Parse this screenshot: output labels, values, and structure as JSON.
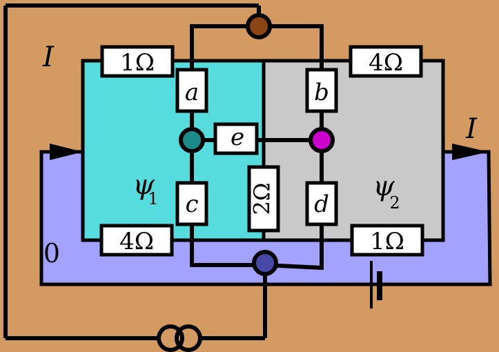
{
  "colors": {
    "background": "#d39a62",
    "left_region": "#56dcdc",
    "right_region": "#c9c9c9",
    "bottom_region": "#a3a3ff",
    "top_node": "#8b4513",
    "bottom_node": "#4848a8",
    "node_e_left": "#1d8a8a",
    "node_e_right": "#cc00cc"
  },
  "labels": {
    "current_left": "I",
    "current_right": "I",
    "zero": "0",
    "psi1": "ψ",
    "psi1_sub": "1",
    "psi2": "ψ",
    "psi2_sub": "2"
  },
  "resistors": {
    "top_left": "1Ω",
    "top_right": "4Ω",
    "bottom_left": "4Ω",
    "bottom_right": "1Ω",
    "center_vertical": "2Ω"
  },
  "elements": {
    "a": "a",
    "b": "b",
    "c": "c",
    "d": "d",
    "e": "e"
  },
  "icons": {
    "battery": "battery-icon",
    "current_source": "current-source-icon"
  }
}
